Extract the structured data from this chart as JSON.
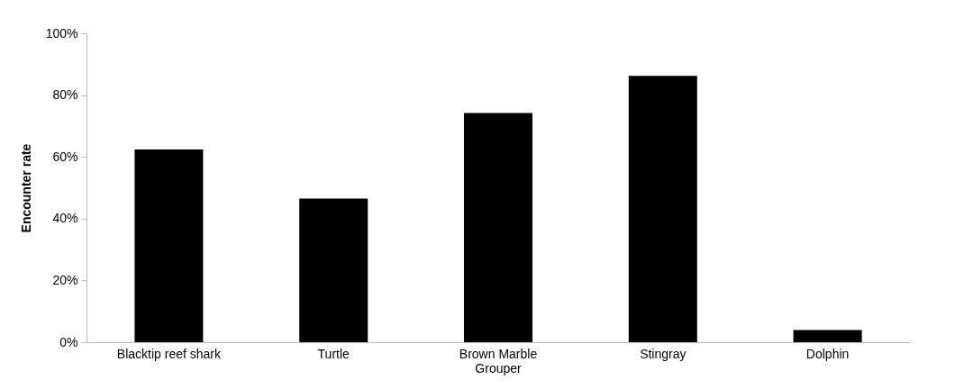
{
  "chart_data": {
    "type": "bar",
    "ylabel": "Encounter rate",
    "categories": [
      "Blacktip reef shark",
      "Turtle",
      "Brown Marble Grouper",
      "Stingray",
      "Dolphin"
    ],
    "values": [
      62.4,
      46.5,
      74.2,
      86.2,
      3.9
    ],
    "color": "#000000",
    "ylim": [
      0,
      100
    ],
    "yticks": [
      {
        "value": 0,
        "label": "0%"
      },
      {
        "value": 20,
        "label": "20%"
      },
      {
        "value": 40,
        "label": "40%"
      },
      {
        "value": 60,
        "label": "60%"
      },
      {
        "value": 80,
        "label": "80%"
      },
      {
        "value": 100,
        "label": "100%"
      }
    ],
    "grid": false
  }
}
